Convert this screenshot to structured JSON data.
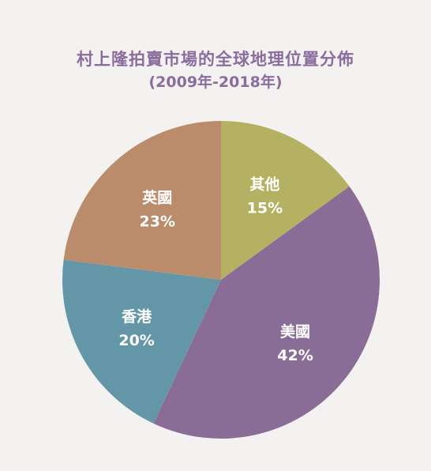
{
  "chart_data": {
    "type": "pie",
    "title": "村上隆拍賣市場的全球地理位置分佈",
    "subtitle": "(2009年-2018年)",
    "slices": [
      {
        "label": "其他",
        "value": 15,
        "value_label": "15%",
        "color": "#b5b163"
      },
      {
        "label": "美國",
        "value": 42,
        "value_label": "42%",
        "color": "#8a6d96"
      },
      {
        "label": "香港",
        "value": 20,
        "value_label": "20%",
        "color": "#6397a8"
      },
      {
        "label": "英國",
        "value": 23,
        "value_label": "23%",
        "color": "#bb8c6b"
      }
    ],
    "start_direction": "top",
    "direction": "clockwise"
  }
}
